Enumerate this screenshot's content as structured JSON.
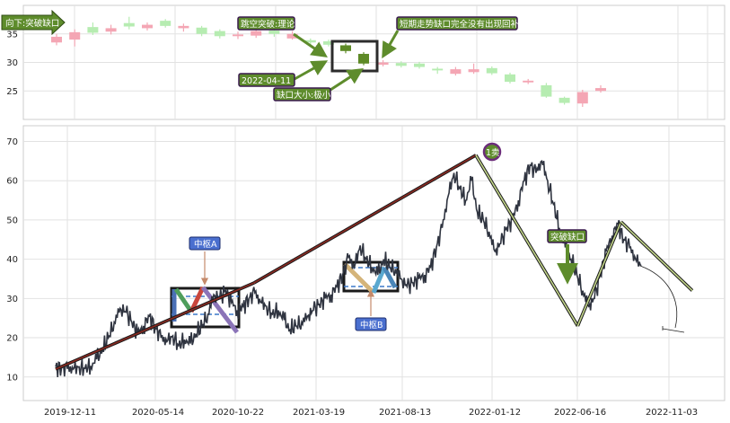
{
  "chart_data": [
    {
      "type": "candlestick",
      "panel": "top-zoom",
      "ylim": [
        20,
        40
      ],
      "yticks": [
        25,
        30,
        35
      ],
      "colors": {
        "up": "#f4a6b4",
        "down": "#b6ecb1",
        "gap_candle": "#5d8a26"
      },
      "candles": [
        {
          "o": 33.5,
          "c": 34.5,
          "h": 35.0,
          "l": 33.0
        },
        {
          "o": 34.0,
          "c": 35.3,
          "h": 35.8,
          "l": 32.8
        },
        {
          "o": 36.2,
          "c": 35.2,
          "h": 37.0,
          "l": 34.8
        },
        {
          "o": 35.4,
          "c": 36.0,
          "h": 36.6,
          "l": 34.9
        },
        {
          "o": 36.9,
          "c": 36.3,
          "h": 38.0,
          "l": 35.8
        },
        {
          "o": 36.0,
          "c": 36.6,
          "h": 37.0,
          "l": 35.6
        },
        {
          "o": 37.3,
          "c": 36.4,
          "h": 37.6,
          "l": 36.1
        },
        {
          "o": 36.0,
          "c": 36.4,
          "h": 36.8,
          "l": 35.4
        },
        {
          "o": 36.1,
          "c": 35.0,
          "h": 36.4,
          "l": 34.6
        },
        {
          "o": 35.5,
          "c": 34.6,
          "h": 35.8,
          "l": 34.2
        },
        {
          "o": 34.6,
          "c": 34.9,
          "h": 35.4,
          "l": 34.1
        },
        {
          "o": 34.7,
          "c": 35.5,
          "h": 36.0,
          "l": 34.3
        },
        {
          "o": 35.6,
          "c": 35.0,
          "h": 35.9,
          "l": 34.5
        },
        {
          "o": 34.2,
          "c": 35.0,
          "h": 35.5,
          "l": 34.0
        },
        {
          "o": 33.9,
          "c": 33.5,
          "h": 34.2,
          "l": 33.0
        },
        {
          "o": 33.7,
          "c": 33.1,
          "h": 34.0,
          "l": 32.8
        },
        {
          "o": 33.0,
          "c": 32.0,
          "h": 33.3,
          "l": 31.6,
          "gap": true
        },
        {
          "o": 31.5,
          "c": 29.8,
          "h": 31.8,
          "l": 29.5,
          "gap": true
        },
        {
          "o": 29.6,
          "c": 30.0,
          "h": 30.4,
          "l": 29.3
        },
        {
          "o": 29.9,
          "c": 29.4,
          "h": 30.2,
          "l": 29.1
        },
        {
          "o": 29.8,
          "c": 29.2,
          "h": 30.1,
          "l": 28.9
        },
        {
          "o": 28.9,
          "c": 28.6,
          "h": 29.2,
          "l": 28.0
        },
        {
          "o": 28.0,
          "c": 28.8,
          "h": 29.2,
          "l": 27.7
        },
        {
          "o": 28.3,
          "c": 28.8,
          "h": 29.8,
          "l": 28.0
        },
        {
          "o": 29.0,
          "c": 28.1,
          "h": 29.3,
          "l": 27.8
        },
        {
          "o": 27.9,
          "c": 26.6,
          "h": 28.2,
          "l": 26.3
        },
        {
          "o": 26.5,
          "c": 26.8,
          "h": 27.1,
          "l": 26.2
        },
        {
          "o": 26.0,
          "c": 24.0,
          "h": 26.4,
          "l": 23.8
        },
        {
          "o": 23.8,
          "c": 22.9,
          "h": 24.0,
          "l": 22.6
        },
        {
          "o": 22.8,
          "c": 24.8,
          "h": 25.2,
          "l": 22.2
        },
        {
          "o": 25.0,
          "c": 25.5,
          "h": 26.0,
          "l": 24.7
        }
      ],
      "annotations": [
        {
          "id": "down-break",
          "text": "向下:突破缺口"
        },
        {
          "id": "gap-theory",
          "text": "跳空突破:理论"
        },
        {
          "id": "gap-note",
          "text": "短期走势缺口完全没有出现回补"
        },
        {
          "id": "gap-date",
          "text": "2022-04-11"
        },
        {
          "id": "gap-size",
          "text": "缺口大小:极小"
        }
      ]
    },
    {
      "type": "line",
      "panel": "bottom-main",
      "ylim": [
        4,
        74
      ],
      "yticks": [
        10,
        20,
        30,
        40,
        50,
        60,
        70
      ],
      "xticks": [
        "2019-12-11",
        "2020-05-14",
        "2020-10-22",
        "2021-03-19",
        "2021-08-13",
        "2022-01-12",
        "2022-06-16",
        "2022-11-03"
      ],
      "price_series": [
        [
          0.0,
          12.6
        ],
        [
          0.01,
          12.3
        ],
        [
          0.02,
          12.1
        ],
        [
          0.03,
          12.0
        ],
        [
          0.04,
          12.6
        ],
        [
          0.05,
          12.2
        ],
        [
          0.06,
          12.8
        ],
        [
          0.07,
          14.5
        ],
        [
          0.08,
          17.0
        ],
        [
          0.09,
          20.0
        ],
        [
          0.1,
          24.0
        ],
        [
          0.11,
          27.5
        ],
        [
          0.12,
          26.5
        ],
        [
          0.13,
          24.0
        ],
        [
          0.14,
          21.0
        ],
        [
          0.15,
          23.0
        ],
        [
          0.16,
          25.5
        ],
        [
          0.17,
          22.5
        ],
        [
          0.18,
          20.0
        ],
        [
          0.19,
          19.0
        ],
        [
          0.2,
          20.5
        ],
        [
          0.21,
          18.0
        ],
        [
          0.22,
          19.5
        ],
        [
          0.23,
          18.5
        ],
        [
          0.24,
          21.0
        ],
        [
          0.25,
          23.0
        ],
        [
          0.26,
          26.0
        ],
        [
          0.27,
          31.0
        ],
        [
          0.28,
          30.0
        ],
        [
          0.29,
          32.0
        ],
        [
          0.3,
          29.0
        ],
        [
          0.31,
          27.0
        ],
        [
          0.32,
          28.0
        ],
        [
          0.33,
          30.0
        ],
        [
          0.34,
          31.5
        ],
        [
          0.35,
          29.0
        ],
        [
          0.36,
          28.0
        ],
        [
          0.37,
          26.0
        ],
        [
          0.38,
          27.0
        ],
        [
          0.39,
          24.5
        ],
        [
          0.4,
          22.0
        ],
        [
          0.41,
          23.0
        ],
        [
          0.42,
          24.0
        ],
        [
          0.43,
          25.5
        ],
        [
          0.44,
          27.0
        ],
        [
          0.45,
          28.5
        ],
        [
          0.46,
          30.0
        ],
        [
          0.47,
          31.0
        ],
        [
          0.48,
          33.0
        ],
        [
          0.49,
          36.0
        ],
        [
          0.5,
          40.5
        ],
        [
          0.51,
          38.0
        ],
        [
          0.52,
          43.5
        ],
        [
          0.53,
          40.0
        ],
        [
          0.54,
          38.0
        ],
        [
          0.55,
          36.0
        ],
        [
          0.56,
          40.0
        ],
        [
          0.57,
          38.0
        ],
        [
          0.58,
          37.5
        ],
        [
          0.59,
          35.0
        ],
        [
          0.6,
          33.0
        ],
        [
          0.61,
          34.0
        ],
        [
          0.62,
          35.0
        ],
        [
          0.63,
          36.0
        ],
        [
          0.64,
          38.0
        ],
        [
          0.65,
          43.0
        ],
        [
          0.66,
          48.0
        ],
        [
          0.67,
          56.0
        ],
        [
          0.68,
          62.0
        ],
        [
          0.69,
          58.0
        ],
        [
          0.7,
          55.0
        ],
        [
          0.71,
          60.0
        ],
        [
          0.72,
          52.0
        ],
        [
          0.73,
          50.0
        ],
        [
          0.74,
          47.0
        ],
        [
          0.75,
          42.0
        ],
        [
          0.76,
          44.0
        ],
        [
          0.77,
          48.0
        ],
        [
          0.78,
          50.0
        ],
        [
          0.79,
          55.0
        ],
        [
          0.8,
          60.0
        ],
        [
          0.81,
          64.0
        ],
        [
          0.82,
          62.0
        ],
        [
          0.83,
          65.0
        ],
        [
          0.84,
          60.0
        ],
        [
          0.85,
          54.0
        ],
        [
          0.86,
          48.0
        ],
        [
          0.87,
          43.0
        ],
        [
          0.88,
          40.0
        ],
        [
          0.89,
          36.0
        ],
        [
          0.9,
          32.0
        ],
        [
          0.91,
          28.0
        ],
        [
          0.92,
          30.0
        ],
        [
          0.93,
          36.0
        ],
        [
          0.94,
          42.0
        ],
        [
          0.95,
          46.0
        ],
        [
          0.96,
          49.0
        ],
        [
          0.97,
          45.0
        ],
        [
          0.98,
          43.0
        ],
        [
          0.99,
          40.0
        ],
        [
          1.0,
          38.5
        ]
      ],
      "strokes": [
        {
          "from": [
            0.0,
            12.0
          ],
          "to": [
            0.312,
            34.0
          ]
        },
        {
          "from": [
            0.312,
            34.0
          ],
          "to": [
            0.66,
            66.5
          ]
        },
        {
          "from": [
            0.66,
            66.5
          ],
          "to": [
            0.82,
            23.0
          ]
        },
        {
          "from": [
            0.82,
            23.0
          ],
          "to": [
            0.888,
            49.5
          ]
        },
        {
          "from": [
            0.888,
            49.5
          ],
          "to": [
            1.0,
            32.0
          ]
        }
      ],
      "zhongshu": [
        {
          "label": "中枢A",
          "y_top": 32.5,
          "y_bottom": 23.5,
          "dash_levels": [
            30.8,
            27.0
          ]
        },
        {
          "label": "中枢B",
          "y_top": 39.5,
          "y_bottom": 32.5,
          "dash_levels": [
            38.0,
            33.5
          ]
        }
      ],
      "annotations": [
        {
          "id": "sell-point",
          "text": "1卖"
        },
        {
          "id": "breakout-gap",
          "text": "突破缺口"
        }
      ]
    }
  ]
}
